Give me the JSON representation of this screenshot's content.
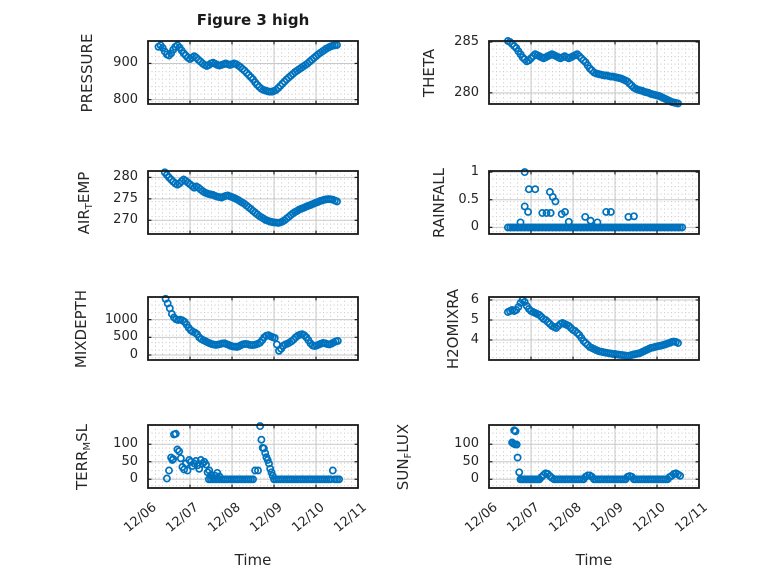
{
  "figure": {
    "title": "Figure 3 high",
    "xlabel": "Time",
    "marker_color": "#0072BD",
    "axis_color": "#1a1a1a",
    "grid_color": "#c9c9c9",
    "minor_dot_color": "#cfcfcf",
    "text_color": "#262626"
  },
  "chart_data": {
    "type": "scatter",
    "figure_title": "Figure 3 high",
    "xlabel": "Time",
    "x_tick_labels": [
      "12/06",
      "12/07",
      "12/08",
      "12/09",
      "12/10",
      "12/11"
    ],
    "x_tick_values": [
      0,
      1,
      2,
      3,
      4,
      5
    ],
    "xlim": [
      0,
      5
    ],
    "x_unit": "days since 12/06",
    "marker": {
      "shape": "open-circle",
      "color": "#0072BD"
    },
    "grid": "major solid + minor dotted",
    "legend": "none",
    "charts": [
      {
        "name": "PRESSURE",
        "ylabel_pre": "PRESSURE",
        "ylabel_sub": "",
        "ylabel_post": "",
        "ytick_values": [
          800,
          900
        ],
        "ytick_labels": [
          "800",
          "900"
        ],
        "ylim": [
          788,
          962
        ],
        "series": {
          "x0": 0.25,
          "dx": 0.05,
          "y": [
            946,
            950,
            943,
            933,
            925,
            922,
            928,
            938,
            946,
            950,
            944,
            936,
            928,
            922,
            916,
            912,
            916,
            920,
            916,
            910,
            905,
            900,
            896,
            893,
            896,
            900,
            902,
            899,
            896,
            894,
            896,
            898,
            900,
            898,
            896,
            898,
            900,
            898,
            894,
            890,
            885,
            880,
            874,
            868,
            862,
            856,
            848,
            841,
            835,
            830,
            827,
            825,
            823,
            822,
            822,
            824,
            827,
            832,
            838,
            844,
            850,
            856,
            861,
            866,
            871,
            876,
            880,
            884,
            888,
            892,
            896,
            900,
            905,
            910,
            915,
            920,
            925,
            929,
            933,
            937,
            941,
            944,
            947,
            949,
            950,
            951
          ]
        }
      },
      {
        "name": "THETA",
        "ylabel_pre": "THETA",
        "ylabel_sub": "",
        "ylabel_post": "",
        "ytick_values": [
          280,
          285
        ],
        "ytick_labels": [
          "280",
          "285"
        ],
        "ylim": [
          278.9,
          285.1
        ],
        "series": {
          "x0": 0.45,
          "dx": 0.05,
          "y": [
            285.1,
            285.0,
            284.8,
            284.6,
            284.4,
            284.1,
            283.8,
            283.5,
            283.3,
            283.1,
            283.2,
            283.4,
            283.6,
            283.8,
            283.7,
            283.6,
            283.5,
            283.4,
            283.5,
            283.6,
            283.7,
            283.8,
            283.7,
            283.6,
            283.5,
            283.4,
            283.5,
            283.6,
            283.5,
            283.4,
            283.5,
            283.6,
            283.7,
            283.8,
            283.6,
            283.4,
            283.2,
            283.0,
            282.7,
            282.4,
            282.2,
            282.0,
            281.9,
            281.85,
            281.8,
            281.75,
            281.7,
            281.7,
            281.65,
            281.6,
            281.6,
            281.55,
            281.5,
            281.45,
            281.4,
            281.3,
            281.2,
            281.1,
            280.9,
            280.7,
            280.5,
            280.4,
            280.3,
            280.25,
            280.2,
            280.1,
            280.05,
            280.0,
            279.9,
            279.85,
            279.8,
            279.75,
            279.7,
            279.6,
            279.5,
            279.4,
            279.3,
            279.2,
            279.1,
            279.05,
            279.0,
            278.95
          ]
        }
      },
      {
        "name": "AIR_TEMP",
        "ylabel_pre": "AIR",
        "ylabel_sub": "T",
        "ylabel_post": "EMP",
        "ytick_values": [
          270,
          275,
          280
        ],
        "ytick_labels": [
          "270",
          "275",
          "280"
        ],
        "ylim": [
          266.8,
          281.5
        ],
        "series": {
          "x0": 0.4,
          "dx": 0.05,
          "y": [
            281.2,
            280.6,
            280.0,
            279.5,
            279.0,
            278.6,
            278.3,
            278.6,
            279.1,
            279.5,
            279.2,
            278.8,
            278.4,
            278.0,
            277.6,
            277.9,
            277.6,
            277.2,
            276.8,
            276.5,
            276.3,
            276.1,
            276.0,
            275.9,
            275.7,
            275.5,
            275.4,
            275.3,
            275.5,
            275.7,
            275.8,
            275.6,
            275.4,
            275.2,
            275.0,
            274.7,
            274.4,
            274.1,
            273.8,
            273.4,
            273.0,
            272.6,
            272.2,
            271.8,
            271.4,
            271.0,
            270.7,
            270.4,
            270.1,
            269.9,
            269.7,
            269.6,
            269.5,
            269.45,
            269.4,
            269.5,
            269.7,
            270.0,
            270.4,
            270.8,
            271.2,
            271.6,
            271.9,
            272.2,
            272.5,
            272.7,
            272.9,
            273.1,
            273.3,
            273.5,
            273.7,
            273.9,
            274.1,
            274.3,
            274.5,
            274.65,
            274.8,
            274.9,
            274.95,
            274.9,
            274.8,
            274.6,
            274.4
          ]
        }
      },
      {
        "name": "RAINFALL",
        "ylabel_pre": "RAINFALL",
        "ylabel_sub": "",
        "ylabel_post": "",
        "ytick_values": [
          0,
          0.5,
          1
        ],
        "ytick_labels": [
          "0",
          "0.5",
          "1"
        ],
        "ylim": [
          -0.12,
          1.02
        ],
        "points": [
          [
            0.75,
            0.09
          ],
          [
            0.85,
            1.0
          ],
          [
            0.85,
            0.38
          ],
          [
            0.93,
            0.28
          ],
          [
            0.95,
            0.69
          ],
          [
            1.1,
            0.69
          ],
          [
            1.27,
            0.26
          ],
          [
            1.37,
            0.26
          ],
          [
            1.45,
            0.64
          ],
          [
            1.47,
            0.26
          ],
          [
            1.52,
            0.55
          ],
          [
            1.58,
            0.47
          ],
          [
            1.73,
            0.24
          ],
          [
            1.81,
            0.28
          ],
          [
            1.9,
            0.1
          ],
          [
            2.29,
            0.19
          ],
          [
            2.42,
            0.12
          ],
          [
            2.58,
            0.09
          ],
          [
            2.79,
            0.28
          ],
          [
            2.9,
            0.28
          ],
          [
            3.32,
            0.19
          ],
          [
            3.45,
            0.2
          ]
        ],
        "zero_runs": [
          {
            "x0": 0.45,
            "x1": 4.6,
            "n": 78,
            "y": 0
          }
        ]
      },
      {
        "name": "MIXDEPTH",
        "ylabel_pre": "MIXDEPTH",
        "ylabel_sub": "",
        "ylabel_post": "",
        "ytick_values": [
          0,
          500,
          1000
        ],
        "ytick_labels": [
          "0",
          "500",
          "1000"
        ],
        "ylim": [
          -141,
          1641
        ],
        "series": {
          "x0": 0.42,
          "dx": 0.05,
          "y": [
            1590,
            1460,
            1320,
            1160,
            1060,
            1010,
            990,
            1000,
            980,
            940,
            860,
            770,
            700,
            660,
            630,
            590,
            500,
            450,
            420,
            390,
            360,
            330,
            310,
            295,
            285,
            295,
            310,
            325,
            330,
            310,
            285,
            260,
            245,
            235,
            230,
            250,
            280,
            305,
            315,
            305,
            290,
            280,
            285,
            300,
            320,
            350,
            420,
            500,
            545,
            560,
            530,
            505,
            480,
            300,
            120,
            180,
            260,
            300,
            320,
            350,
            390,
            440,
            500,
            545,
            575,
            590,
            560,
            500,
            420,
            330,
            270,
            255,
            270,
            295,
            320,
            340,
            330,
            310,
            300,
            320,
            355,
            385,
            400
          ]
        }
      },
      {
        "name": "H2OMIXRA",
        "ylabel_pre": "H2OMIXRA",
        "ylabel_sub": "",
        "ylabel_post": "",
        "ytick_values": [
          4,
          5,
          6
        ],
        "ytick_labels": [
          "4",
          "5",
          "6"
        ],
        "ylim": [
          3.0,
          6.15
        ],
        "series": {
          "x0": 0.45,
          "dx": 0.05,
          "y": [
            5.4,
            5.45,
            5.5,
            5.45,
            5.5,
            5.65,
            5.85,
            6.0,
            5.9,
            5.7,
            5.55,
            5.45,
            5.4,
            5.35,
            5.3,
            5.25,
            5.15,
            5.05,
            5.0,
            4.9,
            4.8,
            4.7,
            4.65,
            4.6,
            4.7,
            4.8,
            4.85,
            4.8,
            4.75,
            4.7,
            4.6,
            4.5,
            4.45,
            4.35,
            4.25,
            4.1,
            3.95,
            3.85,
            3.75,
            3.65,
            3.6,
            3.55,
            3.5,
            3.45,
            3.42,
            3.4,
            3.38,
            3.36,
            3.34,
            3.32,
            3.3,
            3.3,
            3.28,
            3.26,
            3.25,
            3.24,
            3.22,
            3.2,
            3.22,
            3.25,
            3.28,
            3.3,
            3.32,
            3.35,
            3.4,
            3.45,
            3.5,
            3.55,
            3.6,
            3.62,
            3.65,
            3.68,
            3.7,
            3.72,
            3.75,
            3.78,
            3.82,
            3.86,
            3.9,
            3.92,
            3.9,
            3.85
          ]
        }
      },
      {
        "name": "TERR_MSL",
        "ylabel_pre": "TERR",
        "ylabel_sub": "M",
        "ylabel_post": "SL",
        "ytick_values": [
          0,
          50,
          100
        ],
        "ytick_labels": [
          "0",
          "50",
          "100"
        ],
        "ylim": [
          -25,
          155
        ],
        "points": [
          [
            0.45,
            2
          ],
          [
            0.5,
            25
          ],
          [
            0.55,
            62
          ],
          [
            0.58,
            55
          ],
          [
            0.6,
            58
          ],
          [
            0.62,
            128
          ],
          [
            0.66,
            130
          ],
          [
            0.7,
            85
          ],
          [
            0.74,
            80
          ],
          [
            0.78,
            60
          ],
          [
            0.82,
            35
          ],
          [
            0.86,
            28
          ],
          [
            0.9,
            45
          ],
          [
            0.94,
            25
          ],
          [
            0.98,
            55
          ],
          [
            1.02,
            50
          ],
          [
            1.06,
            38
          ],
          [
            1.1,
            45
          ],
          [
            1.14,
            52
          ],
          [
            1.18,
            40
          ],
          [
            1.22,
            30
          ],
          [
            1.26,
            55
          ],
          [
            1.3,
            45
          ],
          [
            1.34,
            50
          ],
          [
            1.38,
            42
          ],
          [
            1.42,
            20
          ],
          [
            1.46,
            25
          ],
          [
            1.5,
            12
          ],
          [
            1.55,
            5
          ],
          [
            1.6,
            10
          ],
          [
            1.65,
            18
          ],
          [
            1.7,
            8
          ],
          [
            2.55,
            25
          ],
          [
            2.62,
            25
          ],
          [
            2.67,
            152
          ],
          [
            2.7,
            113
          ],
          [
            2.73,
            90
          ],
          [
            2.76,
            88
          ],
          [
            2.79,
            75
          ],
          [
            2.82,
            63
          ],
          [
            2.85,
            55
          ],
          [
            2.88,
            45
          ],
          [
            2.91,
            30
          ],
          [
            2.94,
            20
          ],
          [
            2.97,
            10
          ],
          [
            4.4,
            25
          ]
        ],
        "zero_runs": [
          {
            "x0": 1.45,
            "x1": 2.5,
            "n": 22,
            "y": 0
          },
          {
            "x0": 3.0,
            "x1": 4.35,
            "n": 28,
            "y": 0
          },
          {
            "x0": 4.45,
            "x1": 4.55,
            "n": 3,
            "y": 0
          }
        ]
      },
      {
        "name": "SUN_FLUX",
        "ylabel_pre": "SUN",
        "ylabel_sub": "F",
        "ylabel_post": "LUX",
        "ytick_values": [
          0,
          50,
          100
        ],
        "ytick_labels": [
          "0",
          "50",
          "100"
        ],
        "ylim": [
          -25,
          155
        ],
        "points": [
          [
            0.55,
            105
          ],
          [
            0.58,
            102
          ],
          [
            0.6,
            140
          ],
          [
            0.63,
            137
          ],
          [
            0.62,
            100
          ],
          [
            0.66,
            99
          ],
          [
            0.68,
            62
          ],
          [
            0.72,
            20
          ],
          [
            1.25,
            6
          ],
          [
            1.3,
            12
          ],
          [
            1.35,
            17
          ],
          [
            1.4,
            15
          ],
          [
            1.45,
            9
          ],
          [
            1.5,
            4
          ],
          [
            2.3,
            7
          ],
          [
            2.35,
            11
          ],
          [
            2.4,
            11
          ],
          [
            2.45,
            7
          ],
          [
            3.3,
            7
          ],
          [
            3.35,
            9
          ],
          [
            3.4,
            7
          ],
          [
            4.3,
            6
          ],
          [
            4.35,
            10
          ],
          [
            4.4,
            15
          ],
          [
            4.45,
            17
          ],
          [
            4.5,
            14
          ],
          [
            4.55,
            10
          ]
        ],
        "zero_runs": [
          {
            "x0": 0.75,
            "x1": 1.2,
            "n": 12,
            "y": 0
          },
          {
            "x0": 1.55,
            "x1": 2.25,
            "n": 15,
            "y": 0
          },
          {
            "x0": 2.5,
            "x1": 3.25,
            "n": 16,
            "y": 0
          },
          {
            "x0": 3.45,
            "x1": 4.25,
            "n": 17,
            "y": 0
          }
        ]
      }
    ]
  }
}
